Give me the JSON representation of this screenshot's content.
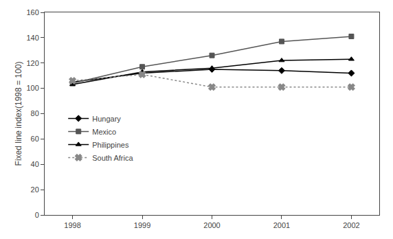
{
  "chart_data": {
    "type": "line",
    "ylabel": "Fixed line index(1998 = 100)",
    "x": [
      1998,
      1999,
      2000,
      2001,
      2002
    ],
    "series": [
      {
        "name": "Hungary",
        "color": "#000000",
        "marker": "diamond",
        "line_style": "solid",
        "values": [
          105,
          112,
          115,
          114,
          112
        ]
      },
      {
        "name": "Mexico",
        "color": "#555555",
        "marker": "square",
        "line_style": "solid",
        "values": [
          104,
          117,
          126,
          137,
          141
        ]
      },
      {
        "name": "Philippines",
        "color": "#000000",
        "marker": "triangle-up",
        "line_style": "solid",
        "values": [
          103,
          113,
          116,
          122,
          123
        ]
      },
      {
        "name": "South Africa",
        "color": "#888888",
        "marker": "x",
        "line_style": "dotted",
        "values": [
          106,
          111,
          101,
          101,
          101
        ]
      }
    ],
    "xlim": [
      1997.6,
      2002.4
    ],
    "xticks": [
      1998,
      1999,
      2000,
      2001,
      2002
    ],
    "ylim": [
      0,
      160
    ],
    "yticks": [
      0,
      20,
      40,
      60,
      80,
      100,
      120,
      140,
      160
    ],
    "grid": false,
    "legend": "left"
  }
}
